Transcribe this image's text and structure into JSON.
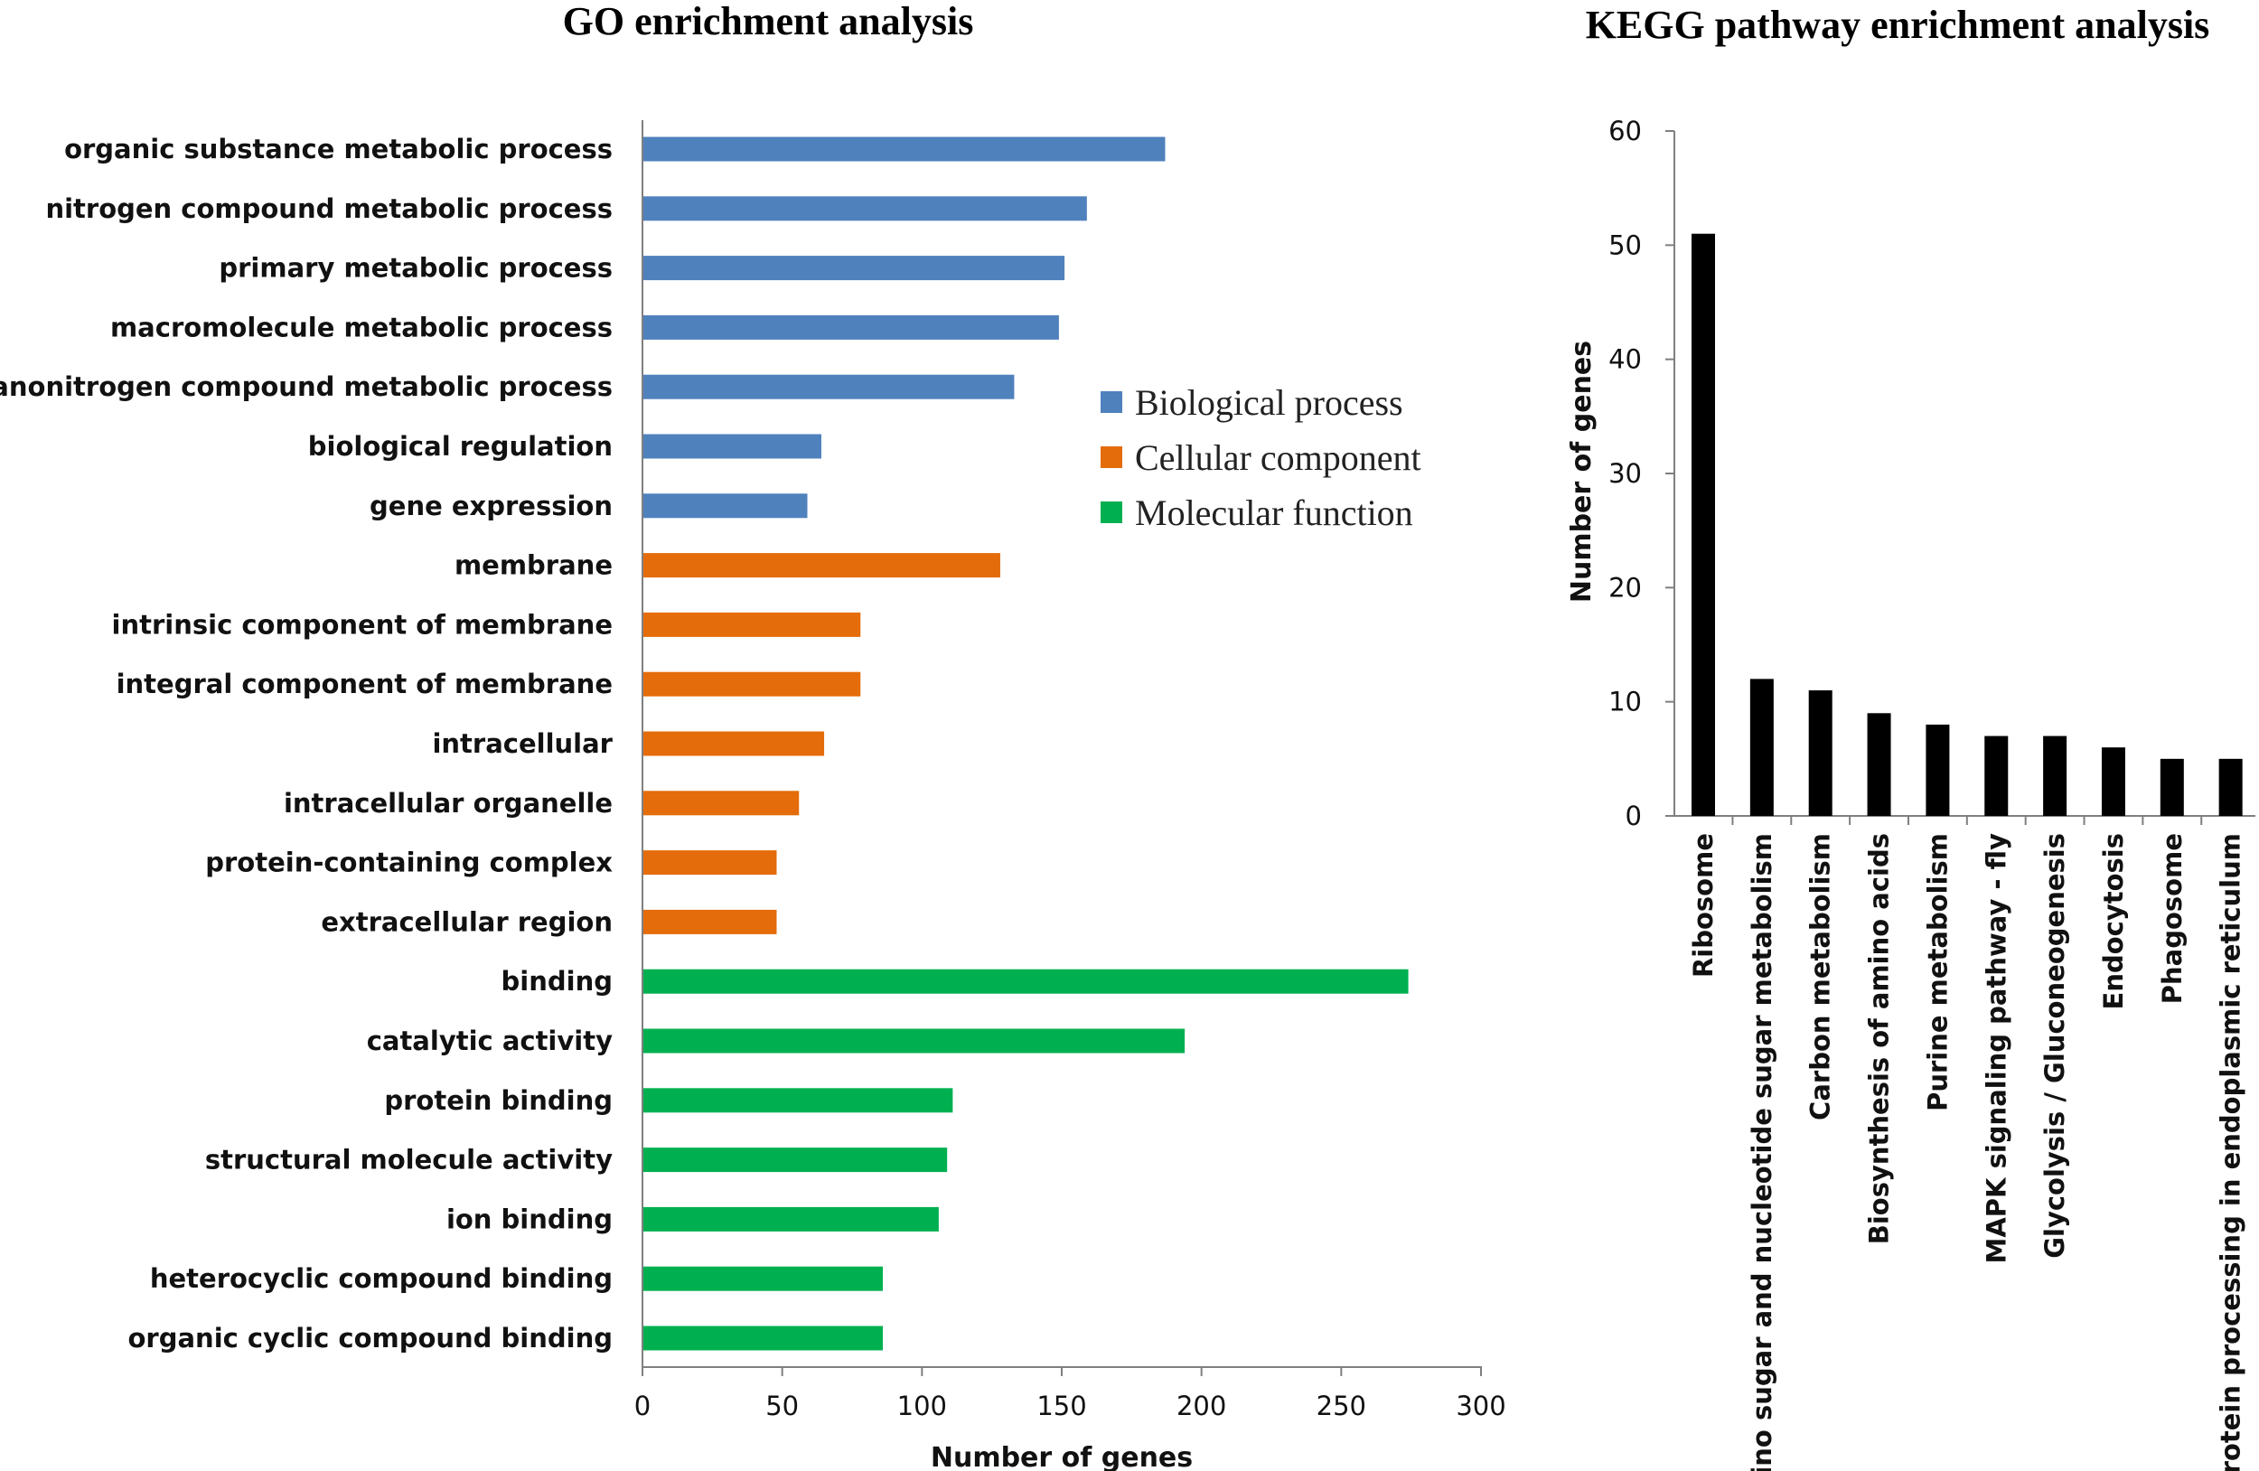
{
  "chart_data": [
    {
      "type": "bar",
      "orientation": "horizontal",
      "title": "GO enrichment analysis",
      "xlabel": "Number of genes",
      "ylabel": "",
      "xlim": [
        0,
        300
      ],
      "xticks": [
        "0",
        "50",
        "100",
        "150",
        "200",
        "250",
        "300"
      ],
      "categories": [
        "organic substance metabolic process",
        "nitrogen compound metabolic process",
        "primary metabolic process",
        "macromolecule metabolic process",
        "organonitrogen compound metabolic process",
        "biological regulation",
        "gene expression",
        "membrane",
        "intrinsic component of membrane",
        "integral component of membrane",
        "intracellular",
        "intracellular organelle",
        "protein-containing complex",
        "extracellular region",
        "binding",
        "catalytic activity",
        "protein binding",
        "structural molecule activity",
        "ion binding",
        "heterocyclic compound binding",
        "organic cyclic compound binding"
      ],
      "values": [
        187,
        159,
        151,
        149,
        133,
        64,
        59,
        128,
        78,
        78,
        65,
        56,
        48,
        48,
        274,
        194,
        111,
        109,
        106,
        86,
        86
      ],
      "groups": [
        "bp",
        "bp",
        "bp",
        "bp",
        "bp",
        "bp",
        "bp",
        "cc",
        "cc",
        "cc",
        "cc",
        "cc",
        "cc",
        "cc",
        "mf",
        "mf",
        "mf",
        "mf",
        "mf",
        "mf",
        "mf"
      ],
      "legend": [
        {
          "key": "bp",
          "label": "Biological process",
          "color": "#4f81bd"
        },
        {
          "key": "cc",
          "label": "Cellular component",
          "color": "#e46c0a"
        },
        {
          "key": "mf",
          "label": "Molecular function",
          "color": "#00b050"
        }
      ],
      "legend_position": "right"
    },
    {
      "type": "bar",
      "orientation": "vertical",
      "title": "KEGG pathway enrichment analysis",
      "xlabel": "",
      "ylabel": "Number of genes",
      "ylim": [
        0,
        60
      ],
      "yticks": [
        "0",
        "10",
        "20",
        "30",
        "40",
        "50",
        "60"
      ],
      "categories": [
        "Ribosome",
        "Amino sugar and nucleotide sugar metabolism",
        "Carbon metabolism",
        "Biosynthesis of amino acids",
        "Purine metabolism",
        "MAPK signaling pathway - fly",
        "Glycolysis / Gluconeogenesis",
        "Endocytosis",
        "Phagosome",
        "Protein processing in endoplasmic reticulum"
      ],
      "values": [
        51,
        12,
        11,
        9,
        8,
        7,
        7,
        6,
        5,
        5
      ],
      "color": "#000000"
    }
  ]
}
